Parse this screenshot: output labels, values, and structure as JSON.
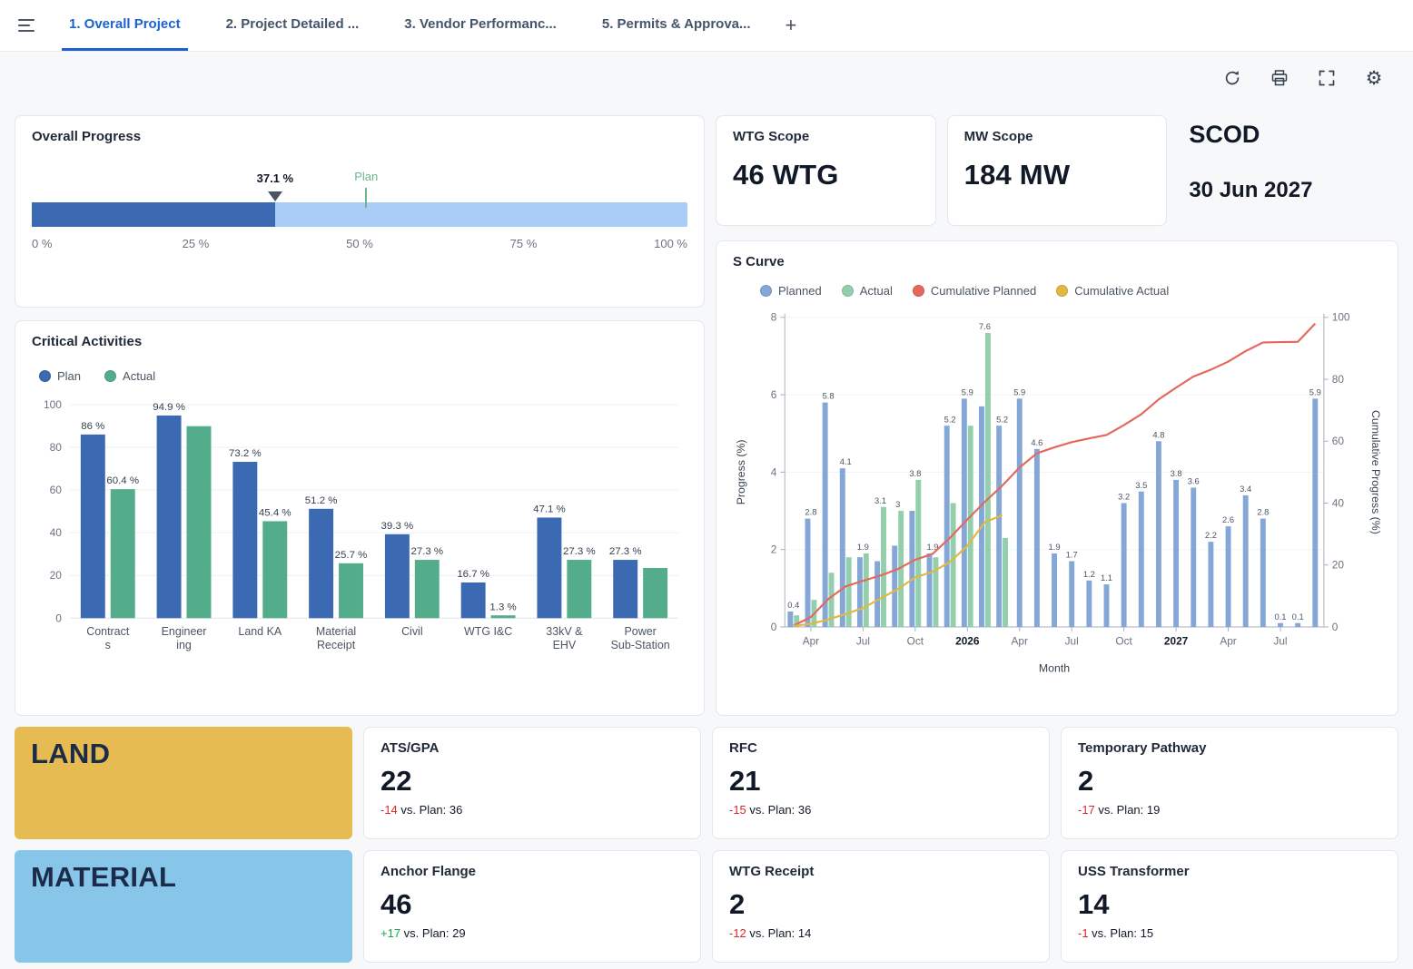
{
  "header": {
    "tabs": [
      {
        "label": "1. Overall Project",
        "active": true
      },
      {
        "label": "2. Project Detailed ...",
        "active": false
      },
      {
        "label": "3. Vendor Performanc...",
        "active": false
      },
      {
        "label": "5. Permits & Approva...",
        "active": false
      }
    ],
    "add_tab_label": "+"
  },
  "toolbar": {
    "icons": [
      "refresh-icon",
      "print-icon",
      "fullscreen-icon",
      "settings-icon"
    ]
  },
  "overall_progress": {
    "title": "Overall Progress",
    "actual_percent": 37.1,
    "actual_label": "37.1 %",
    "plan_percent": 51,
    "plan_label": "Plan",
    "axis_labels": [
      "0 %",
      "25 %",
      "50 %",
      "75 %",
      "100 %"
    ],
    "colors": {
      "done": "#3b6ab2",
      "remaining": "#a9cdf7",
      "plan_marker": "#6db68e"
    }
  },
  "scope_cards": [
    {
      "title": "WTG Scope",
      "value": "46 WTG"
    },
    {
      "title": "MW Scope",
      "value": "184 MW"
    }
  ],
  "scod": {
    "title": "SCOD",
    "value": "30 Jun 2027"
  },
  "chart_data": [
    {
      "id": "critical-activities",
      "type": "bar",
      "title": "Critical Activities",
      "legend": [
        {
          "name": "Plan",
          "color": "#3b6ab2"
        },
        {
          "name": "Actual",
          "color": "#54ad8a"
        }
      ],
      "categories": [
        "Contracts",
        "Engineering",
        "Land KA",
        "Material Receipt",
        "Civil",
        "WTG I&C",
        "33kV & EHV",
        "Power Sub-Station"
      ],
      "category_lines": [
        [
          "Contract",
          "s"
        ],
        [
          "Engineer",
          "ing"
        ],
        [
          "Land KA"
        ],
        [
          "Material",
          "Receipt"
        ],
        [
          "Civil"
        ],
        [
          "WTG I&C"
        ],
        [
          "33kV &",
          "EHV"
        ],
        [
          "Power",
          "Sub-Station"
        ]
      ],
      "series": [
        {
          "name": "Plan",
          "color": "#3b6ab2",
          "values": [
            86,
            94.9,
            73.2,
            51.2,
            39.3,
            16.7,
            47.1,
            27.3
          ],
          "labels": [
            "86 %",
            "94.9 %",
            "73.2 %",
            "51.2 %",
            "39.3 %",
            "16.7 %",
            "47.1 %",
            "27.3 %"
          ]
        },
        {
          "name": "Actual",
          "color": "#54ad8a",
          "values": [
            60.4,
            89.9,
            45.4,
            25.7,
            27.3,
            1.3,
            27.3,
            23.5
          ],
          "labels": [
            "60.4 %",
            "",
            "45.4 %",
            "25.7 %",
            "27.3 %",
            "1.3 %",
            "27.3 %",
            ""
          ]
        }
      ],
      "ylim": [
        0,
        100
      ],
      "yticks": [
        0,
        20,
        40,
        60,
        80,
        100
      ],
      "grid": true,
      "legend_position": "top-left"
    },
    {
      "id": "s-curve",
      "type": "combo",
      "title": "S Curve",
      "legend": [
        {
          "name": "Planned",
          "color": "#84a7d8"
        },
        {
          "name": "Actual",
          "color": "#93cfac"
        },
        {
          "name": "Cumulative Planned",
          "color": "#e4695c"
        },
        {
          "name": "Cumulative Actual",
          "color": "#e0b842"
        }
      ],
      "xlabel": "Month",
      "ylabel_left": "Progress (%)",
      "ylabel_right": "Cumulative Progress (%)",
      "ylim_left": [
        0,
        8
      ],
      "ylim_right": [
        0,
        100
      ],
      "yticks_left": [
        0,
        2,
        4,
        6,
        8
      ],
      "yticks_right": [
        0,
        20,
        40,
        60,
        80,
        100
      ],
      "months": [
        "Mar 2025",
        "Apr 2025",
        "May 2025",
        "Jun 2025",
        "Jul 2025",
        "Aug 2025",
        "Sep 2025",
        "Oct 2025",
        "Nov 2025",
        "Dec 2025",
        "Jan 2026",
        "Feb 2026",
        "Mar 2026",
        "Apr 2026",
        "May 2026",
        "Jun 2026",
        "Jul 2026",
        "Aug 2026",
        "Sep 2026",
        "Oct 2026",
        "Nov 2026",
        "Dec 2026",
        "Jan 2027",
        "Feb 2027",
        "Mar 2027",
        "Apr 2027",
        "May 2027",
        "Jun 2027",
        "Jul 2027",
        "Aug 2027",
        "Sep 2027"
      ],
      "xticks": [
        {
          "index": 1,
          "label": "Apr",
          "bold": false
        },
        {
          "index": 4,
          "label": "Jul",
          "bold": false
        },
        {
          "index": 7,
          "label": "Oct",
          "bold": false
        },
        {
          "index": 10,
          "label": "2026",
          "bold": true
        },
        {
          "index": 13,
          "label": "Apr",
          "bold": false
        },
        {
          "index": 16,
          "label": "Jul",
          "bold": false
        },
        {
          "index": 19,
          "label": "Oct",
          "bold": false
        },
        {
          "index": 22,
          "label": "2027",
          "bold": true
        },
        {
          "index": 25,
          "label": "Apr",
          "bold": false
        },
        {
          "index": 28,
          "label": "Jul",
          "bold": false
        }
      ],
      "series": [
        {
          "name": "Planned",
          "type": "bar",
          "values": [
            0.4,
            2.8,
            5.8,
            4.1,
            1.8,
            1.7,
            2.1,
            3.0,
            1.9,
            5.2,
            5.9,
            5.7,
            5.2,
            5.9,
            4.6,
            1.9,
            1.7,
            1.2,
            1.1,
            3.2,
            3.5,
            4.8,
            3.8,
            3.6,
            2.2,
            2.6,
            3.4,
            2.8,
            0.1,
            0.1,
            5.9
          ]
        },
        {
          "name": "Actual",
          "type": "bar",
          "values": [
            0.3,
            0.7,
            1.4,
            1.8,
            1.9,
            3.1,
            3.0,
            3.8,
            1.8,
            3.2,
            5.2,
            7.6,
            2.3
          ]
        }
      ],
      "bar_colors": {
        "planned": "#84a7d8",
        "actual": "#93cfac"
      },
      "line_colors": {
        "cumulative_planned": "#e4695c",
        "cumulative_actual": "#e0b842"
      },
      "grid": true,
      "legend_position": "top-left"
    }
  ],
  "kpi_sections": [
    {
      "banner": {
        "label": "LAND",
        "bg": "#e6bc52"
      },
      "cards": [
        {
          "title": "ATS/GPA",
          "value": "22",
          "delta": "-14",
          "delta_color": "#dc2626",
          "plan_text": " vs. Plan: 36"
        },
        {
          "title": "RFC",
          "value": "21",
          "delta": "-15",
          "delta_color": "#dc2626",
          "plan_text": " vs. Plan: 36"
        },
        {
          "title": "Temporary Pathway",
          "value": "2",
          "delta": "-17",
          "delta_color": "#dc2626",
          "plan_text": " vs. Plan: 19"
        }
      ]
    },
    {
      "banner": {
        "label": "MATERIAL",
        "bg": "#87c6e9"
      },
      "cards": [
        {
          "title": "Anchor Flange",
          "value": "46",
          "delta": "+17",
          "delta_color": "#16a34a",
          "plan_text": " vs. Plan: 29"
        },
        {
          "title": "WTG Receipt",
          "value": "2",
          "delta": "-12",
          "delta_color": "#dc2626",
          "plan_text": " vs. Plan: 14"
        },
        {
          "title": "USS Transformer",
          "value": "14",
          "delta": "-1",
          "delta_color": "#dc2626",
          "plan_text": " vs. Plan: 15"
        }
      ]
    }
  ]
}
